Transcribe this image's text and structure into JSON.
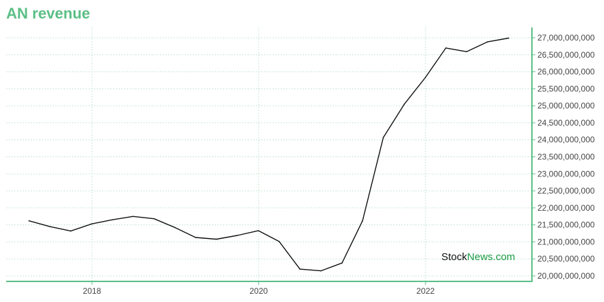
{
  "chart_data": {
    "type": "line",
    "title": "AN revenue",
    "xlabel": "",
    "ylabel": "",
    "x_ticks": [
      "2018",
      "2020",
      "2022"
    ],
    "y_ticks": [
      "20,000,000,000",
      "20,500,000,000",
      "21,000,000,000",
      "21,500,000,000",
      "22,000,000,000",
      "22,500,000,000",
      "23,000,000,000",
      "23,500,000,000",
      "24,000,000,000",
      "24,500,000,000",
      "25,000,000,000",
      "25,500,000,000",
      "26,000,000,000",
      "26,500,000,000",
      "27,000,000,000"
    ],
    "ylim": [
      20000000000,
      27000000000
    ],
    "grid": true,
    "series": [
      {
        "color": "#111111",
        "points": [
          {
            "x": "2017-03-31",
            "y": 21620000000
          },
          {
            "x": "2017-06-30",
            "y": 21450000000
          },
          {
            "x": "2017-09-30",
            "y": 21320000000
          },
          {
            "x": "2017-12-31",
            "y": 21530000000
          },
          {
            "x": "2018-03-31",
            "y": 21650000000
          },
          {
            "x": "2018-06-30",
            "y": 21750000000
          },
          {
            "x": "2018-09-30",
            "y": 21680000000
          },
          {
            "x": "2018-12-31",
            "y": 21420000000
          },
          {
            "x": "2019-03-31",
            "y": 21130000000
          },
          {
            "x": "2019-06-30",
            "y": 21080000000
          },
          {
            "x": "2019-09-30",
            "y": 21190000000
          },
          {
            "x": "2019-12-31",
            "y": 21330000000
          },
          {
            "x": "2020-03-31",
            "y": 21010000000
          },
          {
            "x": "2020-06-30",
            "y": 20200000000
          },
          {
            "x": "2020-09-30",
            "y": 20150000000
          },
          {
            "x": "2020-12-31",
            "y": 20380000000
          },
          {
            "x": "2021-03-31",
            "y": 21620000000
          },
          {
            "x": "2021-06-30",
            "y": 24070000000
          },
          {
            "x": "2021-09-30",
            "y": 25050000000
          },
          {
            "x": "2021-12-31",
            "y": 25830000000
          },
          {
            "x": "2022-03-31",
            "y": 26700000000
          },
          {
            "x": "2022-06-30",
            "y": 26590000000
          },
          {
            "x": "2022-09-30",
            "y": 26880000000
          },
          {
            "x": "2022-12-31",
            "y": 26990000000
          }
        ]
      }
    ]
  },
  "colors": {
    "accent": "#5bbf86",
    "line": "#111111",
    "grid": "#b8dfc8"
  },
  "watermark": {
    "part1": "Stock",
    "part2": "News.com"
  }
}
